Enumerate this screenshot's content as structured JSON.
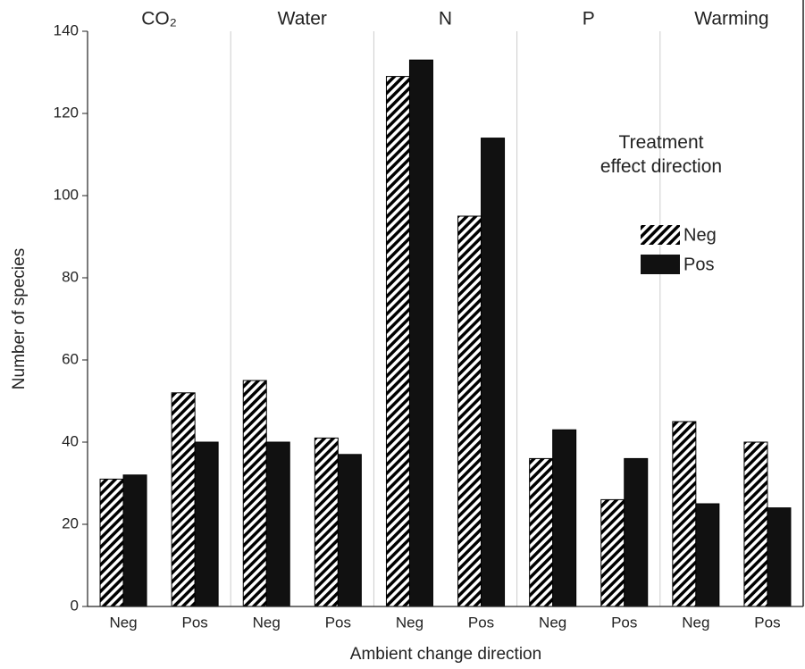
{
  "chart_data": {
    "type": "bar",
    "x_label": "Ambient change direction",
    "y_label": "Number of species",
    "groups": [
      "CO₂",
      "Water",
      "N",
      "P",
      "Warming"
    ],
    "categories": [
      "Neg",
      "Pos",
      "Neg",
      "Pos",
      "Neg",
      "Pos",
      "Neg",
      "Pos",
      "Neg",
      "Pos"
    ],
    "legend_title": "Treatment effect direction",
    "series": [
      {
        "name": "Neg",
        "color": "#000000",
        "pattern": "hatch",
        "values": [
          31,
          52,
          55,
          41,
          129,
          95,
          36,
          26,
          45,
          40
        ]
      },
      {
        "name": "Pos",
        "color": "#111111",
        "values": [
          32,
          40,
          40,
          37,
          133,
          114,
          43,
          36,
          25,
          24
        ]
      }
    ],
    "ylim": [
      0,
      140
    ],
    "yticks": [
      0,
      20,
      40,
      60,
      80,
      100,
      120,
      140
    ]
  }
}
